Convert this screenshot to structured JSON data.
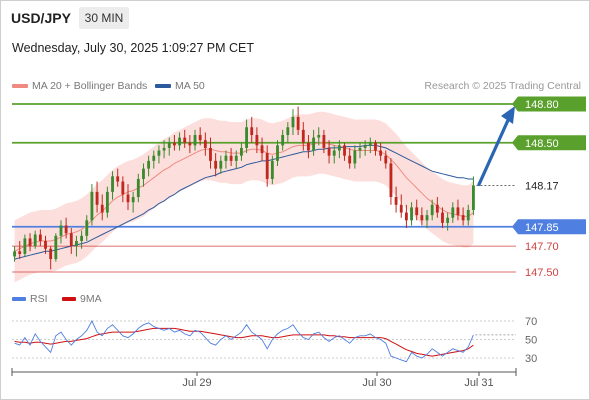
{
  "header": {
    "pair": "USD/JPY",
    "timeframe": "30 MIN",
    "timestamp": "Wednesday, July 30, 2025 1:09:27 PM CET"
  },
  "legend": {
    "ma20_label": "MA 20 + Bollinger Bands",
    "ma50_label": "MA 50",
    "credit": "Research © 2025 Trading Central"
  },
  "rsi_legend": {
    "rsi_label": "RSI",
    "ma_label": "9MA"
  },
  "colors": {
    "up": "#3a8a2e",
    "down": "#c0271e",
    "ma20": "#f08a80",
    "ma50": "#2c5a9c",
    "band_fill": "#fcd9d6",
    "green_level": "#5aa02c",
    "blue_level": "#4f7fe0",
    "red_level": "#d04040",
    "arrow": "#2a66b4",
    "price_tag": "#ffffff"
  },
  "chart_data": [
    {
      "type": "candlestick",
      "title": "USD/JPY 30 MIN",
      "x_ticks": [
        "Jul 29",
        "Jul 30",
        "Jul 31"
      ],
      "ylim": [
        147.4,
        148.85
      ],
      "current_price": 148.17,
      "resistance_levels": [
        148.8,
        148.5
      ],
      "support_levels": [
        147.85,
        147.7,
        147.5
      ],
      "projection": {
        "from": 148.17,
        "to": 148.8
      },
      "ohlc": [
        [
          147.62,
          147.7,
          147.58,
          147.66
        ],
        [
          147.66,
          147.74,
          147.6,
          147.64
        ],
        [
          147.64,
          147.79,
          147.62,
          147.76
        ],
        [
          147.76,
          147.8,
          147.66,
          147.7
        ],
        [
          147.7,
          147.82,
          147.68,
          147.79
        ],
        [
          147.79,
          147.83,
          147.7,
          147.74
        ],
        [
          147.74,
          147.78,
          147.64,
          147.68
        ],
        [
          147.68,
          147.7,
          147.52,
          147.6
        ],
        [
          147.6,
          147.8,
          147.58,
          147.78
        ],
        [
          147.78,
          147.9,
          147.72,
          147.86
        ],
        [
          147.86,
          147.92,
          147.76,
          147.8
        ],
        [
          147.8,
          147.84,
          147.64,
          147.7
        ],
        [
          147.7,
          147.78,
          147.62,
          147.74
        ],
        [
          147.74,
          147.82,
          147.68,
          147.78
        ],
        [
          147.78,
          147.94,
          147.74,
          147.9
        ],
        [
          147.9,
          148.18,
          147.86,
          148.12
        ],
        [
          148.12,
          148.2,
          147.96,
          148.02
        ],
        [
          148.02,
          148.1,
          147.9,
          147.96
        ],
        [
          147.96,
          148.16,
          147.92,
          148.12
        ],
        [
          148.12,
          148.28,
          148.06,
          148.24
        ],
        [
          148.24,
          148.3,
          148.16,
          148.2
        ],
        [
          148.2,
          148.24,
          148.04,
          148.1
        ],
        [
          148.1,
          148.18,
          147.98,
          148.04
        ],
        [
          148.04,
          148.12,
          147.96,
          148.08
        ],
        [
          148.08,
          148.26,
          148.04,
          148.22
        ],
        [
          148.22,
          148.34,
          148.16,
          148.3
        ],
        [
          148.3,
          148.4,
          148.24,
          148.36
        ],
        [
          148.36,
          148.44,
          148.3,
          148.4
        ],
        [
          148.4,
          148.48,
          148.34,
          148.44
        ],
        [
          148.44,
          148.52,
          148.38,
          148.46
        ],
        [
          148.46,
          148.54,
          148.4,
          148.5
        ],
        [
          148.5,
          148.56,
          148.44,
          148.48
        ],
        [
          148.48,
          148.58,
          148.44,
          148.54
        ],
        [
          148.54,
          148.6,
          148.46,
          148.5
        ],
        [
          148.5,
          148.56,
          148.42,
          148.48
        ],
        [
          148.48,
          148.6,
          148.44,
          148.56
        ],
        [
          148.56,
          148.62,
          148.48,
          148.52
        ],
        [
          148.52,
          148.58,
          148.4,
          148.46
        ],
        [
          148.46,
          148.54,
          148.3,
          148.36
        ],
        [
          148.36,
          148.42,
          148.24,
          148.3
        ],
        [
          148.3,
          148.4,
          148.26,
          148.36
        ],
        [
          148.36,
          148.44,
          148.3,
          148.4
        ],
        [
          148.4,
          148.46,
          148.32,
          148.36
        ],
        [
          148.36,
          148.44,
          148.3,
          148.4
        ],
        [
          148.4,
          148.5,
          148.36,
          148.46
        ],
        [
          148.46,
          148.68,
          148.42,
          148.62
        ],
        [
          148.62,
          148.7,
          148.5,
          148.56
        ],
        [
          148.56,
          148.62,
          148.42,
          148.48
        ],
        [
          148.48,
          148.54,
          148.36,
          148.42
        ],
        [
          148.42,
          148.48,
          148.16,
          148.22
        ],
        [
          148.22,
          148.4,
          148.18,
          148.36
        ],
        [
          148.36,
          148.52,
          148.32,
          148.48
        ],
        [
          148.48,
          148.6,
          148.44,
          148.56
        ],
        [
          148.56,
          148.66,
          148.5,
          148.62
        ],
        [
          148.62,
          148.76,
          148.56,
          148.7
        ],
        [
          148.7,
          148.78,
          148.56,
          148.6
        ],
        [
          148.6,
          148.66,
          148.44,
          148.5
        ],
        [
          148.5,
          148.56,
          148.38,
          148.44
        ],
        [
          148.44,
          148.6,
          148.4,
          148.54
        ],
        [
          148.54,
          148.62,
          148.48,
          148.56
        ],
        [
          148.56,
          148.6,
          148.42,
          148.46
        ],
        [
          148.46,
          148.52,
          148.34,
          148.4
        ],
        [
          148.4,
          148.48,
          148.34,
          148.44
        ],
        [
          148.44,
          148.52,
          148.38,
          148.48
        ],
        [
          148.48,
          148.5,
          148.36,
          148.4
        ],
        [
          148.4,
          148.46,
          148.3,
          148.34
        ],
        [
          148.34,
          148.48,
          148.3,
          148.44
        ],
        [
          148.44,
          148.5,
          148.38,
          148.46
        ],
        [
          148.46,
          148.52,
          148.4,
          148.48
        ],
        [
          148.48,
          148.54,
          148.42,
          148.5
        ],
        [
          148.5,
          148.52,
          148.4,
          148.44
        ],
        [
          148.44,
          148.5,
          148.36,
          148.4
        ],
        [
          148.4,
          148.44,
          148.3,
          148.34
        ],
        [
          148.34,
          148.38,
          148.02,
          148.08
        ],
        [
          148.08,
          148.16,
          147.96,
          148.02
        ],
        [
          148.02,
          148.1,
          147.92,
          147.96
        ],
        [
          147.96,
          148.02,
          147.84,
          147.9
        ],
        [
          147.9,
          148.04,
          147.86,
          148.0
        ],
        [
          148.0,
          148.06,
          147.9,
          147.94
        ],
        [
          147.94,
          148.0,
          147.86,
          147.9
        ],
        [
          147.9,
          147.98,
          147.84,
          147.94
        ],
        [
          147.94,
          148.06,
          147.9,
          148.02
        ],
        [
          148.02,
          148.08,
          147.92,
          147.96
        ],
        [
          147.96,
          148.0,
          147.84,
          147.88
        ],
        [
          147.88,
          147.96,
          147.82,
          147.92
        ],
        [
          147.92,
          148.04,
          147.88,
          148.0
        ],
        [
          148.0,
          148.06,
          147.9,
          147.94
        ],
        [
          147.94,
          148.0,
          147.86,
          147.9
        ],
        [
          147.9,
          148.02,
          147.86,
          147.98
        ],
        [
          147.98,
          148.24,
          147.94,
          148.17
        ]
      ],
      "ma20": [
        147.66,
        147.68,
        147.7,
        147.72,
        147.73,
        147.74,
        147.74,
        147.74,
        147.75,
        147.77,
        147.79,
        147.8,
        147.81,
        147.83,
        147.86,
        147.9,
        147.94,
        147.97,
        148.01,
        148.05,
        148.08,
        148.1,
        148.12,
        148.13,
        148.15,
        148.17,
        148.2,
        148.23,
        148.26,
        148.29,
        148.31,
        148.34,
        148.36,
        148.38,
        148.4,
        148.42,
        148.44,
        148.45,
        148.45,
        148.44,
        148.43,
        148.43,
        148.42,
        148.42,
        148.42,
        148.44,
        148.45,
        148.45,
        148.44,
        148.42,
        148.41,
        148.42,
        148.43,
        148.45,
        148.47,
        148.48,
        148.48,
        148.48,
        148.49,
        148.5,
        148.5,
        148.49,
        148.48,
        148.47,
        148.46,
        148.45,
        148.44,
        148.44,
        148.44,
        148.44,
        148.44,
        148.43,
        148.41,
        148.37,
        148.33,
        148.28,
        148.23,
        148.19,
        148.15,
        148.11,
        148.07,
        148.04,
        148.01,
        147.98,
        147.96,
        147.95,
        147.94,
        147.93,
        147.93,
        147.96
      ],
      "ma50": [
        147.6,
        147.61,
        147.62,
        147.63,
        147.64,
        147.65,
        147.66,
        147.66,
        147.67,
        147.68,
        147.69,
        147.7,
        147.71,
        147.72,
        147.73,
        147.75,
        147.77,
        147.79,
        147.81,
        147.83,
        147.85,
        147.87,
        147.89,
        147.91,
        147.93,
        147.95,
        147.98,
        148.0,
        148.03,
        148.05,
        148.08,
        148.1,
        148.13,
        148.15,
        148.17,
        148.19,
        148.21,
        148.23,
        148.24,
        148.25,
        148.27,
        148.28,
        148.29,
        148.3,
        148.31,
        148.33,
        148.34,
        148.35,
        148.36,
        148.36,
        148.37,
        148.38,
        148.39,
        148.4,
        148.41,
        148.42,
        148.43,
        148.43,
        148.44,
        148.45,
        148.45,
        148.46,
        148.46,
        148.46,
        148.47,
        148.47,
        148.47,
        148.47,
        148.48,
        148.48,
        148.48,
        148.47,
        148.46,
        148.44,
        148.42,
        148.4,
        148.38,
        148.36,
        148.34,
        148.32,
        148.3,
        148.28,
        148.27,
        148.26,
        148.25,
        148.24,
        148.23,
        148.23,
        148.22,
        148.22
      ],
      "bb_width": 0.24
    },
    {
      "type": "line",
      "title": "RSI",
      "y_ticks": [
        "70",
        "50",
        "30"
      ],
      "ylim": [
        20,
        80
      ],
      "series": [
        {
          "name": "RSI",
          "values": [
            46,
            44,
            52,
            44,
            56,
            48,
            42,
            36,
            54,
            58,
            50,
            44,
            50,
            54,
            60,
            70,
            58,
            54,
            62,
            66,
            60,
            54,
            52,
            56,
            62,
            66,
            68,
            64,
            62,
            60,
            62,
            58,
            60,
            56,
            54,
            60,
            58,
            52,
            46,
            44,
            50,
            54,
            50,
            54,
            58,
            66,
            58,
            54,
            50,
            40,
            50,
            56,
            60,
            62,
            66,
            58,
            52,
            50,
            56,
            58,
            52,
            48,
            52,
            54,
            50,
            46,
            52,
            54,
            54,
            56,
            52,
            50,
            46,
            32,
            30,
            28,
            26,
            36,
            32,
            30,
            34,
            40,
            36,
            32,
            36,
            40,
            38,
            36,
            42,
            55
          ]
        },
        {
          "name": "9MA",
          "values": [
            48,
            47,
            47,
            46,
            47,
            47,
            46,
            45,
            46,
            47,
            48,
            48,
            49,
            50,
            51,
            53,
            55,
            56,
            57,
            58,
            58,
            58,
            58,
            58,
            59,
            60,
            61,
            62,
            62,
            62,
            62,
            62,
            61,
            60,
            59,
            59,
            59,
            58,
            57,
            56,
            55,
            54,
            53,
            52,
            52,
            53,
            54,
            54,
            54,
            53,
            52,
            52,
            53,
            54,
            55,
            55,
            55,
            55,
            55,
            55,
            55,
            54,
            54,
            53,
            53,
            52,
            52,
            52,
            52,
            52,
            52,
            52,
            51,
            48,
            45,
            42,
            39,
            37,
            35,
            34,
            33,
            32,
            33,
            34,
            35,
            36,
            37,
            38,
            40,
            44
          ]
        }
      ]
    }
  ]
}
